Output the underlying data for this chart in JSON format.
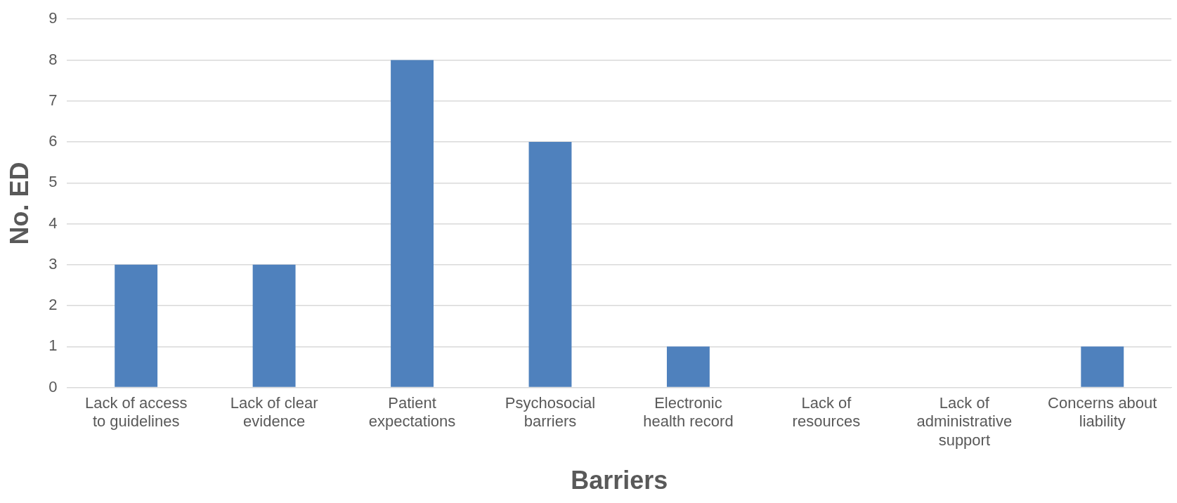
{
  "chart_data": {
    "type": "bar",
    "xlabel": "Barriers",
    "ylabel": "No. ED",
    "categories": [
      "Lack of access to guidelines",
      "Lack of clear evidence",
      "Patient expectations",
      "Psychosocial barriers",
      "Electronic health record",
      "Lack of resources",
      "Lack of administrative support",
      "Concerns about liability"
    ],
    "values": [
      3,
      3,
      8,
      6,
      1,
      0,
      0,
      1
    ],
    "color": "#4f81bd",
    "ylim": [
      0,
      9
    ],
    "yticks": [
      0,
      1,
      2,
      3,
      4,
      5,
      6,
      7,
      8,
      9
    ],
    "grid": "y",
    "legend": false
  }
}
